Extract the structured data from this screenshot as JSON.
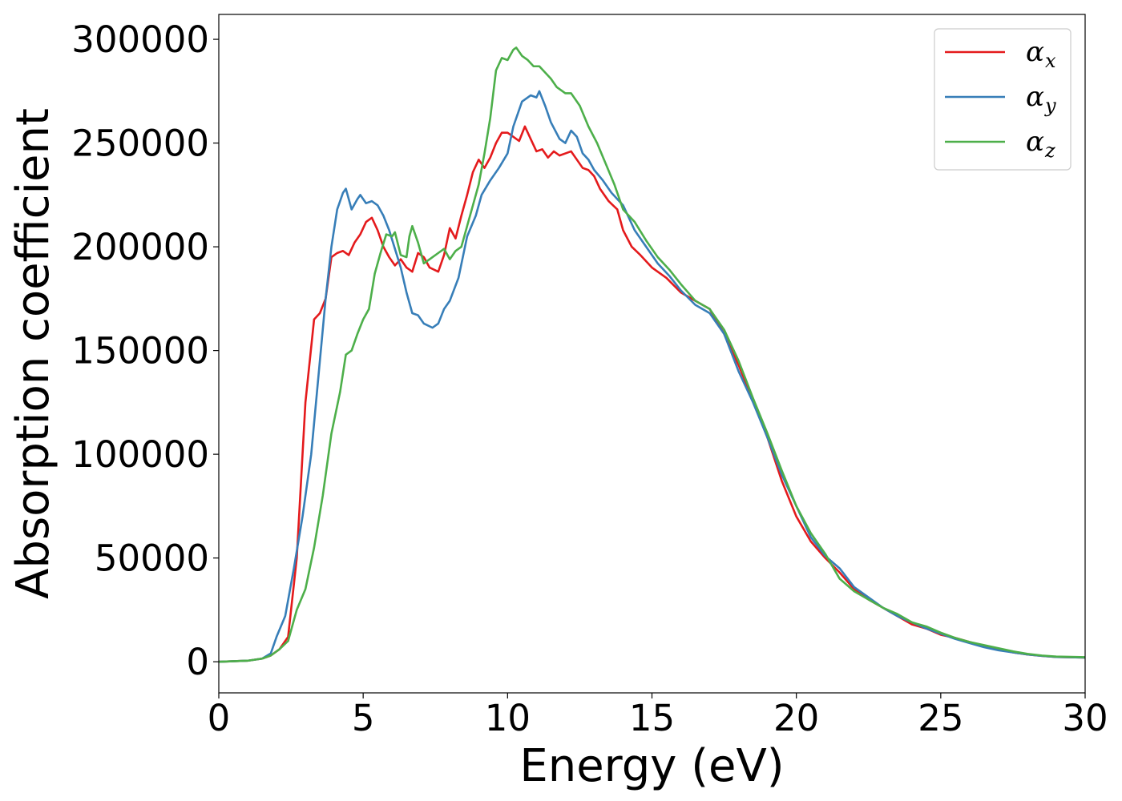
{
  "chart_data": {
    "type": "line",
    "title": "",
    "xlabel": "Energy (eV)",
    "ylabel": "Absorption coefficient",
    "xlim": [
      0,
      30
    ],
    "ylim": [
      -15000,
      312000
    ],
    "xticks": [
      0,
      5,
      10,
      15,
      20,
      25,
      30
    ],
    "yticks": [
      0,
      50000,
      100000,
      150000,
      200000,
      250000,
      300000
    ],
    "grid": false,
    "legend_position": "top-right",
    "legend": [
      {
        "symbol": "α",
        "subscript": "x",
        "color": "#e41a1c"
      },
      {
        "symbol": "α",
        "subscript": "y",
        "color": "#377eb8"
      },
      {
        "symbol": "α",
        "subscript": "z",
        "color": "#4daf4a"
      }
    ],
    "series": [
      {
        "name": "αx",
        "color": "#e41a1c",
        "points": [
          [
            0,
            0
          ],
          [
            1,
            500
          ],
          [
            1.5,
            1500
          ],
          [
            1.8,
            3000
          ],
          [
            2.1,
            6000
          ],
          [
            2.4,
            12000
          ],
          [
            2.7,
            50000
          ],
          [
            3.0,
            125000
          ],
          [
            3.3,
            165000
          ],
          [
            3.5,
            168000
          ],
          [
            3.7,
            175000
          ],
          [
            3.9,
            195000
          ],
          [
            4.1,
            197000
          ],
          [
            4.3,
            198000
          ],
          [
            4.5,
            196000
          ],
          [
            4.7,
            202000
          ],
          [
            4.9,
            206000
          ],
          [
            5.1,
            212000
          ],
          [
            5.3,
            214000
          ],
          [
            5.5,
            208000
          ],
          [
            5.7,
            200000
          ],
          [
            5.9,
            195000
          ],
          [
            6.1,
            191000
          ],
          [
            6.3,
            194000
          ],
          [
            6.5,
            190000
          ],
          [
            6.7,
            188000
          ],
          [
            6.9,
            197000
          ],
          [
            7.1,
            195000
          ],
          [
            7.3,
            190000
          ],
          [
            7.6,
            188000
          ],
          [
            7.8,
            196000
          ],
          [
            8.0,
            209000
          ],
          [
            8.2,
            204000
          ],
          [
            8.4,
            215000
          ],
          [
            8.6,
            225000
          ],
          [
            8.8,
            236000
          ],
          [
            9.0,
            242000
          ],
          [
            9.2,
            238000
          ],
          [
            9.4,
            243000
          ],
          [
            9.6,
            250000
          ],
          [
            9.8,
            255000
          ],
          [
            10.0,
            255000
          ],
          [
            10.2,
            253000
          ],
          [
            10.4,
            251000
          ],
          [
            10.6,
            258000
          ],
          [
            10.8,
            252000
          ],
          [
            11.0,
            246000
          ],
          [
            11.2,
            247000
          ],
          [
            11.4,
            243000
          ],
          [
            11.6,
            246000
          ],
          [
            11.8,
            244000
          ],
          [
            12.0,
            245000
          ],
          [
            12.2,
            246000
          ],
          [
            12.4,
            242000
          ],
          [
            12.6,
            238000
          ],
          [
            12.8,
            237000
          ],
          [
            13.0,
            234000
          ],
          [
            13.2,
            228000
          ],
          [
            13.5,
            222000
          ],
          [
            13.8,
            218000
          ],
          [
            14.0,
            208000
          ],
          [
            14.3,
            200000
          ],
          [
            14.6,
            196000
          ],
          [
            15.0,
            190000
          ],
          [
            15.5,
            185000
          ],
          [
            16.0,
            178000
          ],
          [
            16.5,
            174000
          ],
          [
            17.0,
            170000
          ],
          [
            17.5,
            158000
          ],
          [
            18.0,
            143000
          ],
          [
            18.5,
            126000
          ],
          [
            19.0,
            108000
          ],
          [
            19.5,
            87000
          ],
          [
            20.0,
            70000
          ],
          [
            20.5,
            58000
          ],
          [
            21.0,
            50000
          ],
          [
            21.5,
            43000
          ],
          [
            22.0,
            35000
          ],
          [
            22.5,
            30000
          ],
          [
            23.0,
            26000
          ],
          [
            23.5,
            22000
          ],
          [
            24.0,
            18000
          ],
          [
            24.5,
            16000
          ],
          [
            25.0,
            13000
          ],
          [
            25.5,
            11500
          ],
          [
            26.0,
            9500
          ],
          [
            26.5,
            7500
          ],
          [
            27.0,
            6000
          ],
          [
            27.5,
            4500
          ],
          [
            28.0,
            3500
          ],
          [
            28.5,
            2800
          ],
          [
            29.0,
            2300
          ],
          [
            30.0,
            2000
          ]
        ]
      },
      {
        "name": "αy",
        "color": "#377eb8",
        "points": [
          [
            0,
            0
          ],
          [
            1,
            500
          ],
          [
            1.5,
            1500
          ],
          [
            1.8,
            4000
          ],
          [
            2.0,
            12000
          ],
          [
            2.3,
            22000
          ],
          [
            2.6,
            45000
          ],
          [
            2.9,
            70000
          ],
          [
            3.2,
            100000
          ],
          [
            3.5,
            145000
          ],
          [
            3.7,
            175000
          ],
          [
            3.9,
            200000
          ],
          [
            4.1,
            218000
          ],
          [
            4.3,
            226000
          ],
          [
            4.4,
            228000
          ],
          [
            4.5,
            223000
          ],
          [
            4.6,
            218000
          ],
          [
            4.8,
            223000
          ],
          [
            4.9,
            225000
          ],
          [
            5.1,
            221000
          ],
          [
            5.3,
            222000
          ],
          [
            5.5,
            220000
          ],
          [
            5.7,
            215000
          ],
          [
            5.9,
            208000
          ],
          [
            6.1,
            199000
          ],
          [
            6.3,
            190000
          ],
          [
            6.5,
            178000
          ],
          [
            6.7,
            168000
          ],
          [
            6.9,
            167000
          ],
          [
            7.1,
            163000
          ],
          [
            7.4,
            161000
          ],
          [
            7.6,
            163000
          ],
          [
            7.8,
            170000
          ],
          [
            8.0,
            174000
          ],
          [
            8.3,
            185000
          ],
          [
            8.6,
            205000
          ],
          [
            8.9,
            215000
          ],
          [
            9.1,
            225000
          ],
          [
            9.4,
            232000
          ],
          [
            9.7,
            238000
          ],
          [
            10.0,
            245000
          ],
          [
            10.2,
            258000
          ],
          [
            10.5,
            270000
          ],
          [
            10.8,
            273000
          ],
          [
            11.0,
            272000
          ],
          [
            11.1,
            275000
          ],
          [
            11.3,
            268000
          ],
          [
            11.5,
            260000
          ],
          [
            11.8,
            252000
          ],
          [
            12.0,
            250000
          ],
          [
            12.2,
            256000
          ],
          [
            12.4,
            253000
          ],
          [
            12.6,
            245000
          ],
          [
            12.8,
            242000
          ],
          [
            13.0,
            237000
          ],
          [
            13.3,
            232000
          ],
          [
            13.6,
            226000
          ],
          [
            14.0,
            220000
          ],
          [
            14.4,
            208000
          ],
          [
            14.8,
            200000
          ],
          [
            15.2,
            192000
          ],
          [
            15.6,
            186000
          ],
          [
            16.0,
            179000
          ],
          [
            16.5,
            172000
          ],
          [
            17.0,
            168000
          ],
          [
            17.5,
            158000
          ],
          [
            18.0,
            140000
          ],
          [
            18.5,
            125000
          ],
          [
            19.0,
            108000
          ],
          [
            19.5,
            90000
          ],
          [
            20.0,
            75000
          ],
          [
            20.5,
            60000
          ],
          [
            21.0,
            51000
          ],
          [
            21.5,
            45000
          ],
          [
            22.0,
            36000
          ],
          [
            22.5,
            31000
          ],
          [
            23.0,
            26000
          ],
          [
            23.5,
            22000
          ],
          [
            24.0,
            19000
          ],
          [
            24.5,
            16000
          ],
          [
            25.0,
            13500
          ],
          [
            25.5,
            11000
          ],
          [
            26.0,
            9000
          ],
          [
            26.5,
            7000
          ],
          [
            27.0,
            5500
          ],
          [
            27.5,
            4500
          ],
          [
            28.0,
            3500
          ],
          [
            28.5,
            2800
          ],
          [
            29.0,
            2300
          ],
          [
            30.0,
            2000
          ]
        ]
      },
      {
        "name": "αz",
        "color": "#4daf4a",
        "points": [
          [
            0,
            0
          ],
          [
            1,
            500
          ],
          [
            1.5,
            1500
          ],
          [
            1.8,
            3000
          ],
          [
            2.1,
            6000
          ],
          [
            2.4,
            10000
          ],
          [
            2.7,
            25000
          ],
          [
            3.0,
            35000
          ],
          [
            3.3,
            55000
          ],
          [
            3.6,
            80000
          ],
          [
            3.9,
            110000
          ],
          [
            4.2,
            130000
          ],
          [
            4.4,
            148000
          ],
          [
            4.6,
            150000
          ],
          [
            4.8,
            158000
          ],
          [
            5.0,
            165000
          ],
          [
            5.2,
            170000
          ],
          [
            5.4,
            187000
          ],
          [
            5.6,
            197000
          ],
          [
            5.8,
            206000
          ],
          [
            6.0,
            205000
          ],
          [
            6.1,
            207000
          ],
          [
            6.3,
            196000
          ],
          [
            6.5,
            195000
          ],
          [
            6.6,
            205000
          ],
          [
            6.7,
            210000
          ],
          [
            6.9,
            202000
          ],
          [
            7.1,
            192000
          ],
          [
            7.3,
            194000
          ],
          [
            7.6,
            197000
          ],
          [
            7.8,
            199000
          ],
          [
            8.0,
            194000
          ],
          [
            8.2,
            198000
          ],
          [
            8.4,
            200000
          ],
          [
            8.6,
            210000
          ],
          [
            8.8,
            220000
          ],
          [
            9.0,
            230000
          ],
          [
            9.2,
            245000
          ],
          [
            9.4,
            262000
          ],
          [
            9.6,
            285000
          ],
          [
            9.8,
            291000
          ],
          [
            10.0,
            290000
          ],
          [
            10.2,
            295000
          ],
          [
            10.3,
            296000
          ],
          [
            10.5,
            292000
          ],
          [
            10.7,
            290000
          ],
          [
            10.9,
            287000
          ],
          [
            11.1,
            287000
          ],
          [
            11.3,
            284000
          ],
          [
            11.5,
            281000
          ],
          [
            11.7,
            277000
          ],
          [
            12.0,
            274000
          ],
          [
            12.2,
            274000
          ],
          [
            12.5,
            268000
          ],
          [
            12.8,
            258000
          ],
          [
            13.1,
            250000
          ],
          [
            13.4,
            240000
          ],
          [
            13.7,
            230000
          ],
          [
            14.0,
            218000
          ],
          [
            14.4,
            212000
          ],
          [
            14.8,
            203000
          ],
          [
            15.2,
            195000
          ],
          [
            15.6,
            189000
          ],
          [
            16.0,
            182000
          ],
          [
            16.5,
            174000
          ],
          [
            17.0,
            170000
          ],
          [
            17.5,
            160000
          ],
          [
            18.0,
            145000
          ],
          [
            18.5,
            127000
          ],
          [
            19.0,
            110000
          ],
          [
            19.5,
            92000
          ],
          [
            20.0,
            75000
          ],
          [
            20.5,
            62000
          ],
          [
            21.0,
            52000
          ],
          [
            21.5,
            40000
          ],
          [
            22.0,
            34000
          ],
          [
            22.5,
            30000
          ],
          [
            23.0,
            26000
          ],
          [
            23.5,
            23000
          ],
          [
            24.0,
            19000
          ],
          [
            24.5,
            17000
          ],
          [
            25.0,
            14000
          ],
          [
            25.5,
            11500
          ],
          [
            26.0,
            9500
          ],
          [
            26.5,
            8000
          ],
          [
            27.0,
            6500
          ],
          [
            27.5,
            5000
          ],
          [
            28.0,
            3800
          ],
          [
            28.5,
            3000
          ],
          [
            29.0,
            2500
          ],
          [
            30.0,
            2200
          ]
        ]
      }
    ]
  }
}
